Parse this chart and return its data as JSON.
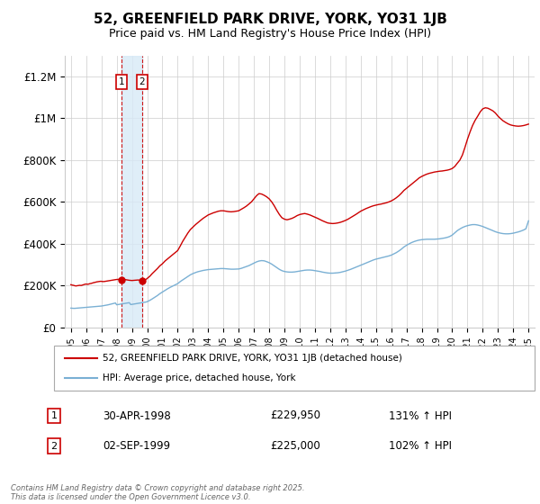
{
  "title": "52, GREENFIELD PARK DRIVE, YORK, YO31 1JB",
  "subtitle": "Price paid vs. HM Land Registry's House Price Index (HPI)",
  "title_fontsize": 11,
  "subtitle_fontsize": 9,
  "ylim": [
    0,
    1300000
  ],
  "yticks": [
    0,
    200000,
    400000,
    600000,
    800000,
    1000000,
    1200000
  ],
  "ytick_labels": [
    "£0",
    "£200K",
    "£400K",
    "£600K",
    "£800K",
    "£1M",
    "£1.2M"
  ],
  "sale1_date": 1998.33,
  "sale2_date": 1999.67,
  "sale1_price": 229950,
  "sale2_price": 225000,
  "sale1_label": "1",
  "sale2_label": "2",
  "sale1_info": "30-APR-1998",
  "sale2_info": "02-SEP-1999",
  "sale1_price_str": "£229,950",
  "sale2_price_str": "£225,000",
  "sale1_pct": "131% ↑ HPI",
  "sale2_pct": "102% ↑ HPI",
  "legend_line1": "52, GREENFIELD PARK DRIVE, YORK, YO31 1JB (detached house)",
  "legend_line2": "HPI: Average price, detached house, York",
  "footer": "Contains HM Land Registry data © Crown copyright and database right 2025.\nThis data is licensed under the Open Government Licence v3.0.",
  "line_color_red": "#cc0000",
  "line_color_blue": "#7ab0d4",
  "background_color": "#ffffff",
  "grid_color": "#cccccc",
  "shade_color": "#d8eaf7",
  "marker_box_color": "#cc0000",
  "xlim_left": 1994.6,
  "xlim_right": 2025.4,
  "years_red": [
    1995.0,
    1995.08,
    1995.17,
    1995.25,
    1995.33,
    1995.42,
    1995.5,
    1995.58,
    1995.67,
    1995.75,
    1995.83,
    1995.92,
    1996.0,
    1996.08,
    1996.17,
    1996.25,
    1996.33,
    1996.42,
    1996.5,
    1996.58,
    1996.67,
    1996.75,
    1996.83,
    1996.92,
    1997.0,
    1997.08,
    1997.17,
    1997.25,
    1997.33,
    1997.42,
    1997.5,
    1997.58,
    1997.67,
    1997.75,
    1997.83,
    1997.92,
    1998.0,
    1998.08,
    1998.17,
    1998.25,
    1998.33,
    1998.42,
    1998.5,
    1998.58,
    1998.67,
    1998.75,
    1998.83,
    1998.92,
    1999.0,
    1999.08,
    1999.17,
    1999.25,
    1999.33,
    1999.42,
    1999.5,
    1999.58,
    1999.67,
    1999.75,
    1999.83,
    1999.92,
    2000.0,
    2000.17,
    2000.33,
    2000.5,
    2000.67,
    2000.83,
    2001.0,
    2001.17,
    2001.33,
    2001.5,
    2001.67,
    2001.83,
    2002.0,
    2002.17,
    2002.33,
    2002.5,
    2002.67,
    2002.83,
    2003.0,
    2003.17,
    2003.33,
    2003.5,
    2003.67,
    2003.83,
    2004.0,
    2004.17,
    2004.33,
    2004.5,
    2004.67,
    2004.83,
    2005.0,
    2005.17,
    2005.33,
    2005.5,
    2005.67,
    2005.83,
    2006.0,
    2006.17,
    2006.33,
    2006.5,
    2006.67,
    2006.83,
    2007.0,
    2007.17,
    2007.33,
    2007.5,
    2007.67,
    2007.83,
    2008.0,
    2008.17,
    2008.33,
    2008.5,
    2008.67,
    2008.83,
    2009.0,
    2009.17,
    2009.33,
    2009.5,
    2009.67,
    2009.83,
    2010.0,
    2010.17,
    2010.33,
    2010.5,
    2010.67,
    2010.83,
    2011.0,
    2011.17,
    2011.33,
    2011.5,
    2011.67,
    2011.83,
    2012.0,
    2012.17,
    2012.33,
    2012.5,
    2012.67,
    2012.83,
    2013.0,
    2013.17,
    2013.33,
    2013.5,
    2013.67,
    2013.83,
    2014.0,
    2014.17,
    2014.33,
    2014.5,
    2014.67,
    2014.83,
    2015.0,
    2015.17,
    2015.33,
    2015.5,
    2015.67,
    2015.83,
    2016.0,
    2016.17,
    2016.33,
    2016.5,
    2016.67,
    2016.83,
    2017.0,
    2017.17,
    2017.33,
    2017.5,
    2017.67,
    2017.83,
    2018.0,
    2018.17,
    2018.33,
    2018.5,
    2018.67,
    2018.83,
    2019.0,
    2019.17,
    2019.33,
    2019.5,
    2019.67,
    2019.83,
    2020.0,
    2020.17,
    2020.33,
    2020.5,
    2020.67,
    2020.83,
    2021.0,
    2021.17,
    2021.33,
    2021.5,
    2021.67,
    2021.83,
    2022.0,
    2022.17,
    2022.33,
    2022.5,
    2022.67,
    2022.83,
    2023.0,
    2023.17,
    2023.33,
    2023.5,
    2023.67,
    2023.83,
    2024.0,
    2024.17,
    2024.33,
    2024.5,
    2024.67,
    2024.83,
    2025.0
  ],
  "values_red": [
    205000,
    203000,
    202000,
    200000,
    199000,
    200000,
    201000,
    202000,
    201000,
    203000,
    205000,
    207000,
    208000,
    207000,
    208000,
    210000,
    211000,
    213000,
    215000,
    216000,
    218000,
    219000,
    220000,
    221000,
    221000,
    220000,
    220000,
    221000,
    222000,
    223000,
    224000,
    225000,
    226000,
    227000,
    228000,
    229000,
    229950,
    230000,
    230500,
    231000,
    229950,
    230000,
    230000,
    229000,
    228000,
    227000,
    226000,
    225500,
    225000,
    225500,
    226000,
    226500,
    227000,
    227500,
    226000,
    225500,
    225000,
    226000,
    228000,
    230000,
    235000,
    245000,
    258000,
    270000,
    282000,
    295000,
    305000,
    318000,
    328000,
    338000,
    348000,
    358000,
    368000,
    390000,
    412000,
    432000,
    452000,
    468000,
    480000,
    492000,
    502000,
    512000,
    522000,
    530000,
    538000,
    543000,
    548000,
    552000,
    556000,
    558000,
    558000,
    556000,
    554000,
    553000,
    554000,
    556000,
    558000,
    565000,
    572000,
    580000,
    590000,
    600000,
    615000,
    630000,
    640000,
    638000,
    632000,
    625000,
    615000,
    600000,
    582000,
    560000,
    540000,
    525000,
    518000,
    515000,
    518000,
    522000,
    528000,
    535000,
    540000,
    543000,
    545000,
    542000,
    538000,
    533000,
    528000,
    522000,
    516000,
    510000,
    505000,
    500000,
    498000,
    497000,
    498000,
    500000,
    503000,
    507000,
    512000,
    518000,
    525000,
    532000,
    540000,
    548000,
    556000,
    562000,
    568000,
    573000,
    578000,
    582000,
    585000,
    588000,
    590000,
    593000,
    596000,
    600000,
    605000,
    612000,
    620000,
    630000,
    642000,
    655000,
    665000,
    675000,
    685000,
    695000,
    705000,
    715000,
    722000,
    728000,
    733000,
    737000,
    740000,
    743000,
    745000,
    747000,
    748000,
    750000,
    752000,
    755000,
    760000,
    770000,
    785000,
    800000,
    825000,
    860000,
    900000,
    935000,
    965000,
    990000,
    1010000,
    1030000,
    1045000,
    1050000,
    1048000,
    1042000,
    1035000,
    1025000,
    1010000,
    998000,
    988000,
    980000,
    973000,
    968000,
    965000,
    963000,
    962000,
    963000,
    965000,
    968000,
    972000
  ],
  "years_blue": [
    1995.0,
    1995.08,
    1995.17,
    1995.25,
    1995.33,
    1995.42,
    1995.5,
    1995.58,
    1995.67,
    1995.75,
    1995.83,
    1995.92,
    1996.0,
    1996.08,
    1996.17,
    1996.25,
    1996.33,
    1996.42,
    1996.5,
    1996.58,
    1996.67,
    1996.75,
    1996.83,
    1996.92,
    1997.0,
    1997.08,
    1997.17,
    1997.25,
    1997.33,
    1997.42,
    1997.5,
    1997.58,
    1997.67,
    1997.75,
    1997.83,
    1997.92,
    1998.0,
    1998.08,
    1998.17,
    1998.25,
    1998.33,
    1998.42,
    1998.5,
    1998.58,
    1998.67,
    1998.75,
    1998.83,
    1998.92,
    1999.0,
    1999.08,
    1999.17,
    1999.25,
    1999.33,
    1999.42,
    1999.5,
    1999.58,
    1999.67,
    1999.75,
    1999.83,
    1999.92,
    2000.0,
    2000.17,
    2000.33,
    2000.5,
    2000.67,
    2000.83,
    2001.0,
    2001.17,
    2001.33,
    2001.5,
    2001.67,
    2001.83,
    2002.0,
    2002.17,
    2002.33,
    2002.5,
    2002.67,
    2002.83,
    2003.0,
    2003.17,
    2003.33,
    2003.5,
    2003.67,
    2003.83,
    2004.0,
    2004.17,
    2004.33,
    2004.5,
    2004.67,
    2004.83,
    2005.0,
    2005.17,
    2005.33,
    2005.5,
    2005.67,
    2005.83,
    2006.0,
    2006.17,
    2006.33,
    2006.5,
    2006.67,
    2006.83,
    2007.0,
    2007.17,
    2007.33,
    2007.5,
    2007.67,
    2007.83,
    2008.0,
    2008.17,
    2008.33,
    2008.5,
    2008.67,
    2008.83,
    2009.0,
    2009.17,
    2009.33,
    2009.5,
    2009.67,
    2009.83,
    2010.0,
    2010.17,
    2010.33,
    2010.5,
    2010.67,
    2010.83,
    2011.0,
    2011.17,
    2011.33,
    2011.5,
    2011.67,
    2011.83,
    2012.0,
    2012.17,
    2012.33,
    2012.5,
    2012.67,
    2012.83,
    2013.0,
    2013.17,
    2013.33,
    2013.5,
    2013.67,
    2013.83,
    2014.0,
    2014.17,
    2014.33,
    2014.5,
    2014.67,
    2014.83,
    2015.0,
    2015.17,
    2015.33,
    2015.5,
    2015.67,
    2015.83,
    2016.0,
    2016.17,
    2016.33,
    2016.5,
    2016.67,
    2016.83,
    2017.0,
    2017.17,
    2017.33,
    2017.5,
    2017.67,
    2017.83,
    2018.0,
    2018.17,
    2018.33,
    2018.5,
    2018.67,
    2018.83,
    2019.0,
    2019.17,
    2019.33,
    2019.5,
    2019.67,
    2019.83,
    2020.0,
    2020.17,
    2020.33,
    2020.5,
    2020.67,
    2020.83,
    2021.0,
    2021.17,
    2021.33,
    2021.5,
    2021.67,
    2021.83,
    2022.0,
    2022.17,
    2022.33,
    2022.5,
    2022.67,
    2022.83,
    2023.0,
    2023.17,
    2023.33,
    2023.5,
    2023.67,
    2023.83,
    2024.0,
    2024.17,
    2024.33,
    2024.5,
    2024.67,
    2024.83,
    2025.0
  ],
  "values_blue": [
    93000,
    92500,
    92000,
    92000,
    92500,
    93000,
    93500,
    94000,
    94500,
    95000,
    95500,
    96000,
    96500,
    97000,
    97500,
    98000,
    98500,
    99000,
    99500,
    100000,
    100500,
    101000,
    101500,
    102000,
    103000,
    104000,
    105000,
    106000,
    107000,
    108500,
    110000,
    111500,
    113000,
    114500,
    116000,
    117500,
    109000,
    110000,
    111000,
    112000,
    113000,
    114000,
    115000,
    116000,
    117000,
    118000,
    119000,
    110000,
    111000,
    112000,
    113000,
    114000,
    115000,
    116000,
    117000,
    118000,
    119000,
    120000,
    121000,
    122000,
    124000,
    130000,
    137000,
    145000,
    153000,
    162000,
    170000,
    178000,
    185000,
    192000,
    198000,
    204000,
    210000,
    220000,
    228000,
    236000,
    244000,
    252000,
    258000,
    263000,
    267000,
    270000,
    273000,
    275000,
    277000,
    278000,
    279000,
    280000,
    281000,
    282000,
    282000,
    281000,
    280000,
    279000,
    279000,
    279500,
    280000,
    283000,
    287000,
    291000,
    296000,
    302000,
    308000,
    314000,
    318000,
    320000,
    319000,
    315000,
    310000,
    303000,
    295000,
    286000,
    278000,
    272000,
    268000,
    266000,
    265000,
    265000,
    266000,
    268000,
    270000,
    272000,
    274000,
    275000,
    275000,
    274000,
    272000,
    270000,
    268000,
    265000,
    263000,
    261000,
    260000,
    260000,
    261000,
    262000,
    264000,
    267000,
    270000,
    274000,
    278000,
    283000,
    288000,
    293000,
    298000,
    303000,
    308000,
    313000,
    318000,
    323000,
    327000,
    330000,
    333000,
    336000,
    339000,
    342000,
    346000,
    352000,
    358000,
    366000,
    375000,
    385000,
    393000,
    400000,
    406000,
    411000,
    415000,
    418000,
    420000,
    421000,
    422000,
    422000,
    422000,
    422000,
    423000,
    424000,
    426000,
    428000,
    431000,
    435000,
    442000,
    453000,
    463000,
    471000,
    478000,
    483000,
    487000,
    490000,
    492000,
    492000,
    490000,
    487000,
    483000,
    478000,
    473000,
    468000,
    463000,
    458000,
    454000,
    451000,
    449000,
    448000,
    448000,
    449000,
    451000,
    454000,
    457000,
    461000,
    466000,
    472000,
    510000
  ]
}
